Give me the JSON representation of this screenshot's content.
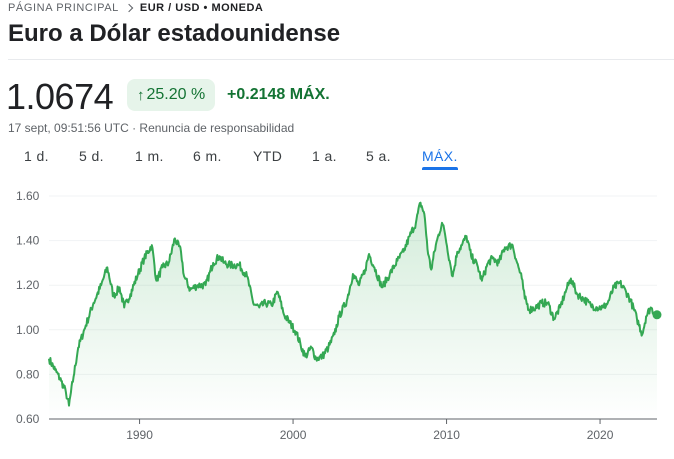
{
  "breadcrumb": {
    "home": "PÁGINA PRINCIPAL",
    "current": "EUR / USD • MONEDA"
  },
  "title": "Euro a Dólar estadounidense",
  "quote": {
    "price": "1.0674",
    "change_percent": "25.20 %",
    "change_arrow": "↑",
    "change_absolute": "+0.2148 MÁX.",
    "timestamp": "17 sept, 09:51:56 UTC",
    "separator": " · ",
    "disclaimer": "Renuncia de responsabilidad"
  },
  "ranges": [
    {
      "label": "1 d.",
      "active": false
    },
    {
      "label": "5 d.",
      "active": false
    },
    {
      "label": "1 m.",
      "active": false
    },
    {
      "label": "6 m.",
      "active": false
    },
    {
      "label": "YTD",
      "active": false
    },
    {
      "label": "1 a.",
      "active": false
    },
    {
      "label": "5 a.",
      "active": false
    },
    {
      "label": "MÁX.",
      "active": true
    }
  ],
  "colors": {
    "positive": "#34a853",
    "positive_text": "#137333",
    "chip_bg": "#e6f4ea",
    "accent": "#1a73e8"
  },
  "chart_data": {
    "type": "area",
    "ylim": [
      0.6,
      1.6
    ],
    "xlim": [
      1984.1,
      2023.71
    ],
    "yticks": [
      "1.60",
      "1.40",
      "1.20",
      "1.00",
      "0.80",
      "0.60"
    ],
    "ytick_values": [
      1.6,
      1.4,
      1.2,
      1.0,
      0.8,
      0.6
    ],
    "xticks": [
      "1990",
      "2000",
      "2010",
      "2020"
    ],
    "xtick_values": [
      1990,
      2000,
      2010,
      2020
    ],
    "x": [
      1984.1,
      1984.5,
      1984.9,
      1985.2,
      1985.4,
      1985.7,
      1986.0,
      1986.5,
      1987.0,
      1987.5,
      1987.9,
      1988.3,
      1988.7,
      1989.0,
      1989.4,
      1989.9,
      1990.3,
      1990.8,
      1991.1,
      1991.5,
      1991.9,
      1992.3,
      1992.7,
      1992.9,
      1993.3,
      1993.8,
      1994.3,
      1994.8,
      1995.2,
      1995.5,
      1995.9,
      1996.5,
      1997.0,
      1997.4,
      1997.8,
      1998.2,
      1998.6,
      1999.0,
      1999.4,
      1999.8,
      2000.2,
      2000.5,
      2000.8,
      2001.2,
      2001.5,
      2001.9,
      2002.3,
      2002.7,
      2003.0,
      2003.5,
      2003.9,
      2004.3,
      2004.7,
      2004.95,
      2005.3,
      2005.8,
      2006.3,
      2006.8,
      2007.2,
      2007.6,
      2008.0,
      2008.3,
      2008.55,
      2008.8,
      2009.0,
      2009.3,
      2009.7,
      2009.9,
      2010.2,
      2010.4,
      2010.7,
      2011.0,
      2011.3,
      2011.6,
      2012.0,
      2012.3,
      2012.7,
      2013.0,
      2013.4,
      2013.8,
      2014.3,
      2014.6,
      2014.9,
      2015.1,
      2015.4,
      2015.8,
      2016.2,
      2016.6,
      2017.0,
      2017.4,
      2017.8,
      2018.1,
      2018.5,
      2018.9,
      2019.4,
      2019.8,
      2020.2,
      2020.5,
      2020.9,
      2021.3,
      2021.7,
      2022.0,
      2022.4,
      2022.75,
      2023.0,
      2023.3,
      2023.6,
      2023.71
    ],
    "y": [
      0.87,
      0.82,
      0.77,
      0.72,
      0.66,
      0.79,
      0.92,
      1.02,
      1.12,
      1.2,
      1.28,
      1.15,
      1.19,
      1.1,
      1.16,
      1.25,
      1.32,
      1.38,
      1.22,
      1.28,
      1.3,
      1.41,
      1.35,
      1.24,
      1.18,
      1.2,
      1.2,
      1.3,
      1.33,
      1.3,
      1.29,
      1.29,
      1.24,
      1.12,
      1.1,
      1.12,
      1.11,
      1.17,
      1.07,
      1.03,
      0.99,
      0.93,
      0.88,
      0.92,
      0.87,
      0.88,
      0.92,
      0.98,
      1.06,
      1.13,
      1.25,
      1.2,
      1.27,
      1.34,
      1.28,
      1.19,
      1.25,
      1.31,
      1.35,
      1.42,
      1.48,
      1.57,
      1.52,
      1.34,
      1.27,
      1.38,
      1.48,
      1.43,
      1.31,
      1.24,
      1.35,
      1.38,
      1.42,
      1.33,
      1.29,
      1.22,
      1.3,
      1.32,
      1.3,
      1.37,
      1.38,
      1.3,
      1.23,
      1.14,
      1.09,
      1.1,
      1.12,
      1.12,
      1.05,
      1.1,
      1.18,
      1.23,
      1.16,
      1.14,
      1.11,
      1.1,
      1.1,
      1.12,
      1.19,
      1.21,
      1.17,
      1.13,
      1.05,
      0.98,
      1.06,
      1.1,
      1.07,
      1.0674
    ]
  }
}
